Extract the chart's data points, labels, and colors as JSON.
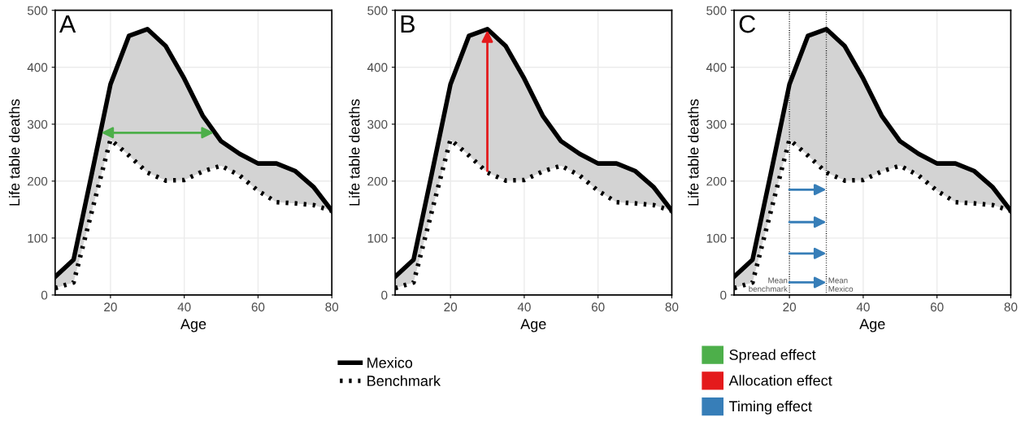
{
  "chart_data": [
    {
      "type": "line",
      "xlabel": "Age",
      "ylabel": "Life table deaths",
      "xlim": [
        5,
        80
      ],
      "xticks": [
        20,
        40,
        60,
        80
      ],
      "ylim": [
        0,
        500
      ],
      "yticks": [
        0,
        100,
        200,
        300,
        400,
        500
      ],
      "grid": true,
      "legend": "bottom",
      "annotations": [
        "A"
      ],
      "x": [
        5,
        10,
        15,
        20,
        25,
        30,
        35,
        40,
        45,
        50,
        55,
        60,
        65,
        70,
        75,
        80
      ],
      "series": [
        {
          "name": "Mexico",
          "color": "#000000",
          "line_style": "solid",
          "values": [
            32,
            62,
            215,
            370,
            455,
            467,
            437,
            380,
            315,
            270,
            248,
            231,
            231,
            218,
            190,
            148
          ],
          "lower": [
            12,
            22,
            148,
            273,
            245,
            215,
            201,
            202,
            217,
            227,
            210,
            183,
            163,
            161,
            158,
            148
          ],
          "upper": [
            32,
            62,
            215,
            370,
            455,
            467,
            437,
            380,
            315,
            270,
            248,
            231,
            231,
            218,
            190,
            148
          ]
        },
        {
          "name": "Benchmark",
          "color": "#000000",
          "line_style": "dotted",
          "values": [
            12,
            22,
            148,
            273,
            245,
            215,
            201,
            202,
            217,
            227,
            210,
            183,
            163,
            161,
            158,
            148
          ]
        },
        {
          "name": "Spread effect",
          "color": "#4daf4a",
          "values": [
            null,
            null,
            null,
            null,
            null,
            null,
            null,
            null,
            null,
            null,
            null,
            null,
            null,
            null,
            null,
            null
          ]
        }
      ]
    },
    {
      "type": "line",
      "xlabel": "Age",
      "ylabel": "Life table deaths",
      "xlim": [
        5,
        80
      ],
      "xticks": [
        20,
        40,
        60,
        80
      ],
      "ylim": [
        0,
        500
      ],
      "yticks": [
        0,
        100,
        200,
        300,
        400,
        500
      ],
      "grid": true,
      "legend": "bottom",
      "annotations": [
        "B"
      ],
      "x": [
        5,
        10,
        15,
        20,
        25,
        30,
        35,
        40,
        45,
        50,
        55,
        60,
        65,
        70,
        75,
        80
      ],
      "series": [
        {
          "color": "#000000",
          "line_style": "solid",
          "values": [
            32,
            62,
            215,
            370,
            455,
            467,
            437,
            380,
            315,
            270,
            248,
            231,
            231,
            218,
            190,
            148
          ],
          "lower": [
            12,
            22,
            148,
            273,
            245,
            215,
            201,
            202,
            217,
            227,
            210,
            183,
            163,
            161,
            158,
            148
          ],
          "upper": [
            32,
            62,
            215,
            370,
            455,
            467,
            437,
            380,
            315,
            270,
            248,
            231,
            231,
            218,
            190,
            148
          ]
        },
        {
          "color": "#000000",
          "line_style": "dotted",
          "values": [
            12,
            22,
            148,
            273,
            245,
            215,
            201,
            202,
            217,
            227,
            210,
            183,
            163,
            161,
            158,
            148
          ]
        },
        {
          "name": "Allocation effect",
          "color": "#e41a1c",
          "values": [
            null,
            null,
            null,
            null,
            null,
            null,
            null,
            null,
            null,
            null,
            null,
            null,
            null,
            null,
            null,
            null
          ]
        }
      ]
    },
    {
      "type": "line",
      "xlabel": "Age",
      "ylabel": "Life table deaths",
      "xlim": [
        5,
        80
      ],
      "xticks": [
        20,
        40,
        60,
        80
      ],
      "ylim": [
        0,
        500
      ],
      "yticks": [
        0,
        100,
        200,
        300,
        400,
        500
      ],
      "grid": true,
      "legend": "bottom",
      "annotations": [
        "C"
      ],
      "x": [
        5,
        10,
        15,
        20,
        25,
        30,
        35,
        40,
        45,
        50,
        55,
        60,
        65,
        70,
        75,
        80
      ],
      "series": [
        {
          "color": "#000000",
          "line_style": "solid",
          "values": [
            32,
            62,
            215,
            370,
            455,
            467,
            437,
            380,
            315,
            270,
            248,
            231,
            231,
            218,
            190,
            148
          ],
          "lower": [
            12,
            22,
            148,
            273,
            245,
            215,
            201,
            202,
            217,
            227,
            210,
            183,
            163,
            161,
            158,
            148
          ],
          "upper": [
            32,
            62,
            215,
            370,
            455,
            467,
            437,
            380,
            315,
            270,
            248,
            231,
            231,
            218,
            190,
            148
          ]
        },
        {
          "color": "#000000",
          "line_style": "dotted",
          "values": [
            12,
            22,
            148,
            273,
            245,
            215,
            201,
            202,
            217,
            227,
            210,
            183,
            163,
            161,
            158,
            148
          ]
        },
        {
          "name": "Timing effect",
          "color": "#377eb8",
          "values": [
            null,
            null,
            null,
            null,
            null,
            null,
            null,
            null,
            null,
            null,
            null,
            null,
            null,
            null,
            null,
            null
          ]
        }
      ],
      "ref_lines": [
        {
          "axis": "x",
          "value": 20,
          "label": "Mean\nbenchmark",
          "line_style": "dotted"
        },
        {
          "axis": "x",
          "value": 30,
          "label": "Mean\nMexico",
          "line_style": "dotted"
        }
      ]
    }
  ]
}
